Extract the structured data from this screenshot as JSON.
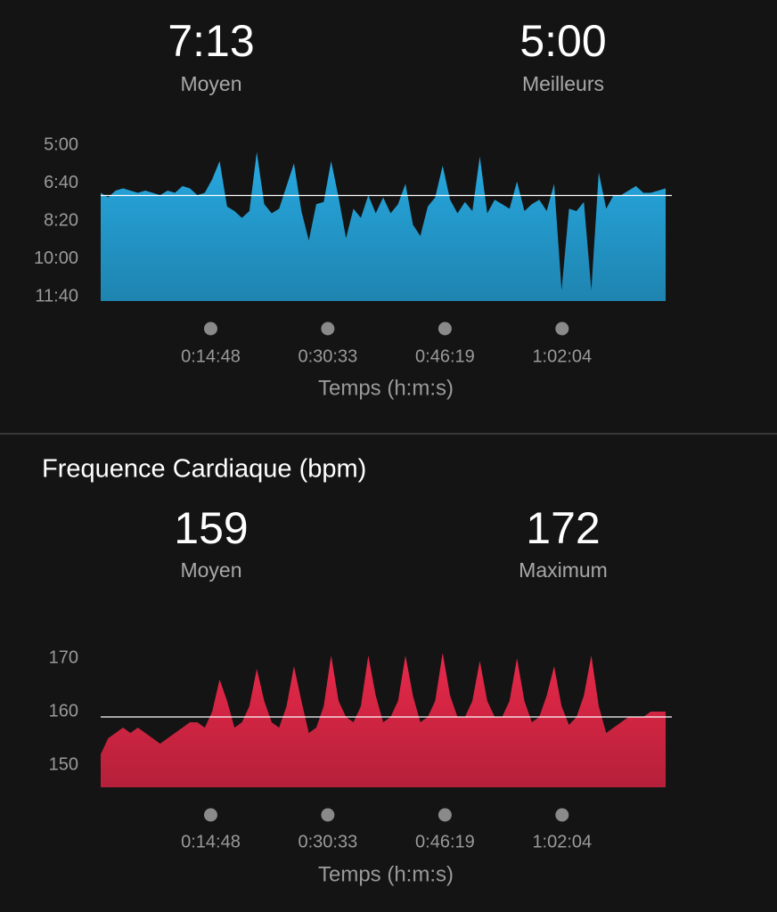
{
  "pace_summary": {
    "average": "7:13",
    "average_label": "Moyen",
    "best": "5:00",
    "best_label": "Meilleurs"
  },
  "heart_rate_summary": {
    "average": "159",
    "average_label": "Moyen",
    "maximum": "172",
    "maximum_label": "Maximum"
  },
  "chart_data": [
    {
      "type": "area",
      "color": "#27a9e1",
      "x": [
        0,
        60,
        120,
        180,
        240,
        300,
        360,
        420,
        480,
        540,
        600,
        660,
        720,
        780,
        840,
        900,
        960,
        1020,
        1080,
        1140,
        1200,
        1260,
        1320,
        1380,
        1440,
        1500,
        1560,
        1620,
        1680,
        1740,
        1800,
        1860,
        1920,
        1980,
        2040,
        2100,
        2160,
        2220,
        2280,
        2340,
        2400,
        2460,
        2520,
        2580,
        2640,
        2700,
        2760,
        2820,
        2880,
        2940,
        3000,
        3060,
        3120,
        3180,
        3240,
        3300,
        3360,
        3420,
        3480,
        3540,
        3600,
        3660,
        3720,
        3780,
        3840,
        3900,
        3960,
        4020,
        4080,
        4140,
        4200,
        4260,
        4320,
        4380,
        4440,
        4500,
        4560
      ],
      "values": [
        7.1,
        7.3,
        7.0,
        6.9,
        7.0,
        7.1,
        7.0,
        7.1,
        7.2,
        7.0,
        7.1,
        6.8,
        6.9,
        7.2,
        7.1,
        6.5,
        5.7,
        7.7,
        7.9,
        8.2,
        7.9,
        5.3,
        7.6,
        8.0,
        7.8,
        6.8,
        5.8,
        7.9,
        9.2,
        7.6,
        7.5,
        5.7,
        7.3,
        9.1,
        7.8,
        8.2,
        7.2,
        8.0,
        7.3,
        8.0,
        7.6,
        6.7,
        8.5,
        9.0,
        7.7,
        7.3,
        5.9,
        7.4,
        8.0,
        7.5,
        7.9,
        5.5,
        8.0,
        7.4,
        7.6,
        7.8,
        6.6,
        7.9,
        7.6,
        7.4,
        7.9,
        6.7,
        11.4,
        7.8,
        7.9,
        7.5,
        11.4,
        6.2,
        7.8,
        7.2,
        7.2,
        7.0,
        6.8,
        7.1,
        7.1,
        7.0,
        6.9
      ],
      "average_line": 7.2167,
      "xlim": [
        0,
        4610
      ],
      "xticks": [
        {
          "value": 888,
          "label": "0:14:48"
        },
        {
          "value": 1833,
          "label": "0:30:33"
        },
        {
          "value": 2779,
          "label": "0:46:19"
        },
        {
          "value": 3724,
          "label": "1:02:04"
        }
      ],
      "ylim": [
        11.6667,
        5
      ],
      "yticks": [
        {
          "value": 5,
          "label": "5:00"
        },
        {
          "value": 6.6667,
          "label": "6:40"
        },
        {
          "value": 8.3333,
          "label": "8:20"
        },
        {
          "value": 10,
          "label": "10:00"
        },
        {
          "value": 11.6667,
          "label": "11:40"
        }
      ],
      "xlabel": "Temps (h:m:s)"
    },
    {
      "type": "area",
      "title": "Frequence Cardiaque (bpm)",
      "color": "#e8294a",
      "x": [
        0,
        60,
        120,
        180,
        240,
        300,
        360,
        420,
        480,
        540,
        600,
        660,
        720,
        780,
        840,
        900,
        960,
        1020,
        1080,
        1140,
        1200,
        1260,
        1320,
        1380,
        1440,
        1500,
        1560,
        1620,
        1680,
        1740,
        1800,
        1860,
        1920,
        1980,
        2040,
        2100,
        2160,
        2220,
        2280,
        2340,
        2400,
        2460,
        2520,
        2580,
        2640,
        2700,
        2760,
        2820,
        2880,
        2940,
        3000,
        3060,
        3120,
        3180,
        3240,
        3300,
        3360,
        3420,
        3480,
        3540,
        3600,
        3660,
        3720,
        3780,
        3840,
        3900,
        3960,
        4020,
        4080,
        4140,
        4200,
        4260,
        4320,
        4380,
        4440,
        4500,
        4560
      ],
      "values": [
        152,
        155,
        156,
        157,
        156,
        157,
        156,
        155,
        154,
        155,
        156,
        157,
        158,
        158,
        157,
        160,
        166,
        162,
        157,
        158,
        161,
        168,
        162,
        158,
        157,
        161,
        168.5,
        162,
        156,
        157,
        161,
        170.5,
        162,
        159,
        158,
        161,
        170.5,
        163,
        158,
        159,
        162,
        170.5,
        163,
        158,
        159,
        162,
        171,
        163,
        159,
        159,
        162,
        169.5,
        162,
        159,
        159,
        162,
        170,
        162,
        158,
        159,
        163,
        168.5,
        161,
        157.5,
        159,
        163,
        170.5,
        161,
        156,
        157,
        158,
        159,
        159,
        159,
        160,
        160,
        160
      ],
      "average_line": 159,
      "xlim": [
        0,
        4610
      ],
      "xticks": [
        {
          "value": 888,
          "label": "0:14:48"
        },
        {
          "value": 1833,
          "label": "0:30:33"
        },
        {
          "value": 2779,
          "label": "0:46:19"
        },
        {
          "value": 3724,
          "label": "1:02:04"
        }
      ],
      "ylim": [
        146,
        172
      ],
      "yticks": [
        150,
        160,
        170
      ],
      "xlabel": "Temps (h:m:s)"
    }
  ]
}
